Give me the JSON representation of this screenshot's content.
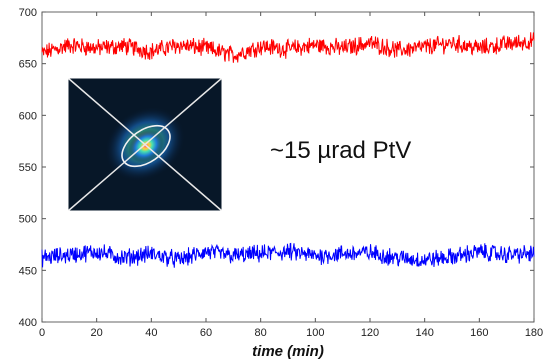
{
  "chart_data": {
    "type": "line",
    "title": "",
    "xlabel": "time (min)",
    "ylabel": "",
    "xlim": [
      0,
      180
    ],
    "ylim": [
      400,
      700
    ],
    "xticks": [
      0,
      20,
      40,
      60,
      80,
      100,
      120,
      140,
      160,
      180
    ],
    "yticks": [
      400,
      450,
      500,
      550,
      600,
      650,
      700
    ],
    "grid": false,
    "series": [
      {
        "color": "#ff0000",
        "x": [
          0,
          10,
          20,
          30,
          40,
          50,
          60,
          70,
          80,
          90,
          100,
          110,
          120,
          130,
          140,
          150,
          160,
          170,
          180
        ],
        "values": [
          660,
          668,
          665,
          667,
          662,
          668,
          665,
          658,
          667,
          664,
          668,
          665,
          670,
          663,
          666,
          670,
          665,
          669,
          672
        ]
      },
      {
        "color": "#0000ff",
        "x": [
          0,
          10,
          20,
          30,
          40,
          50,
          60,
          70,
          80,
          90,
          100,
          110,
          120,
          130,
          140,
          150,
          160,
          170,
          180
        ],
        "values": [
          462,
          465,
          468,
          462,
          466,
          460,
          468,
          464,
          466,
          468,
          464,
          466,
          467,
          462,
          460,
          463,
          468,
          465,
          466
        ]
      }
    ],
    "annotation": "~15 µrad PtV",
    "inset": {
      "type": "image",
      "description_icon": "beam-spot-image"
    }
  }
}
